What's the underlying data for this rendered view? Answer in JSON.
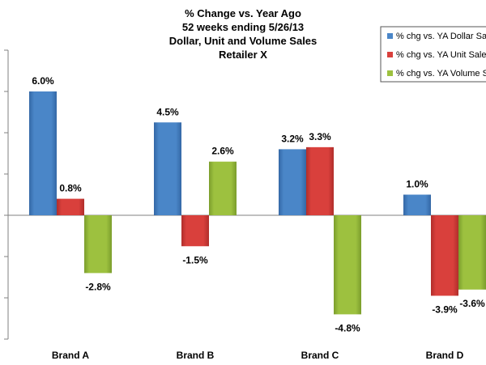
{
  "chart_data": {
    "type": "bar",
    "title_lines": [
      "% Change vs. Year Ago",
      "52 weeks ending 5/26/13",
      "Dollar, Unit and Volume Sales",
      "Retailer X"
    ],
    "categories": [
      "Brand A",
      "Brand B",
      "Brand C",
      "Brand D"
    ],
    "series": [
      {
        "name": "% chg vs. YA Dollar Sales",
        "color": "#4A86C8",
        "color_dark": "#3468A6",
        "values": [
          6.0,
          4.5,
          3.2,
          1.0
        ],
        "labels": [
          "6.0%",
          "4.5%",
          "3.2%",
          "1.0%"
        ]
      },
      {
        "name": "% chg vs. YA Unit Sales",
        "color": "#D9403C",
        "color_dark": "#B02E2B",
        "values": [
          0.8,
          -1.5,
          3.3,
          -3.9
        ],
        "labels": [
          "0.8%",
          "-1.5%",
          "3.3%",
          "-3.9%"
        ]
      },
      {
        "name": "% chg vs. YA Volume Sales",
        "color": "#9DC13F",
        "color_dark": "#7B9D2C",
        "values": [
          -2.8,
          2.6,
          -4.8,
          -3.6
        ],
        "labels": [
          "-2.8%",
          "2.6%",
          "-4.8%",
          "-3.6%"
        ]
      }
    ],
    "ylim": [
      -6,
      8
    ],
    "grid": false,
    "legend_position": "top-right"
  }
}
